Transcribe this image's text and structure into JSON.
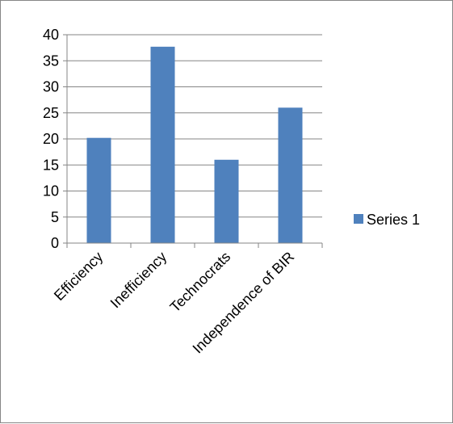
{
  "chart_data": {
    "type": "bar",
    "categories": [
      "Efficiency",
      "Inefficiency",
      "Technocrats",
      "Independence of BIR"
    ],
    "series": [
      {
        "name": "Series 1",
        "values": [
          20.2,
          37.7,
          16,
          26
        ],
        "color": "#4f81bd"
      }
    ],
    "ylim": [
      0,
      40
    ],
    "yticks": [
      0,
      5,
      10,
      15,
      20,
      25,
      30,
      35,
      40
    ],
    "grid": true,
    "legend_position": "right",
    "title": "",
    "xlabel": "",
    "ylabel": ""
  }
}
